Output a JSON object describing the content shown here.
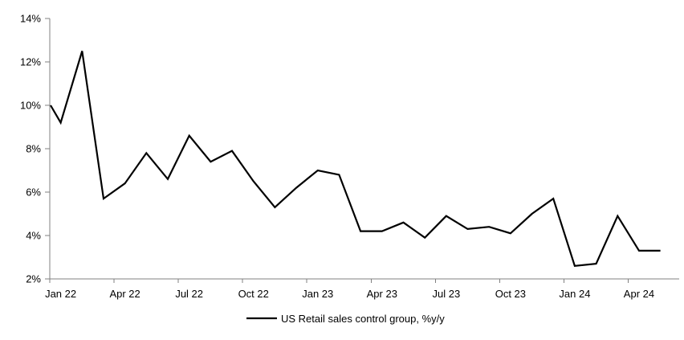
{
  "chart_data": {
    "type": "line",
    "title": "",
    "legend": "US Retail sales control group, %y/y",
    "x": [
      "Jan 22",
      "Feb 22",
      "Mar 22",
      "Apr 22",
      "May 22",
      "Jun 22",
      "Jul 22",
      "Aug 22",
      "Sep 22",
      "Oct 22",
      "Nov 22",
      "Dec 22",
      "Jan 23",
      "Feb 23",
      "Mar 23",
      "Apr 23",
      "May 23",
      "Jun 23",
      "Jul 23",
      "Aug 23",
      "Sep 23",
      "Oct 23",
      "Nov 23",
      "Dec 23",
      "Jan 24",
      "Feb 24",
      "Mar 24",
      "Apr 24",
      "May 24"
    ],
    "values": [
      9.2,
      12.5,
      5.7,
      6.4,
      7.8,
      6.6,
      8.6,
      7.4,
      7.9,
      6.5,
      5.3,
      6.2,
      7.0,
      6.8,
      4.2,
      4.2,
      4.6,
      3.9,
      4.9,
      4.3,
      4.4,
      4.1,
      5.0,
      5.7,
      2.6,
      2.7,
      4.9,
      3.3,
      3.3
    ],
    "lead_in": {
      "value": 10.0,
      "note": "line enters clipped at left axis edge"
    },
    "xlabel": "",
    "ylabel": "",
    "ylim": [
      2,
      14
    ],
    "ytick_step": 2,
    "ytick_labels": [
      "2%",
      "4%",
      "6%",
      "8%",
      "10%",
      "12%",
      "14%"
    ],
    "xtick_labels_shown": [
      "Jan 22",
      "Apr 22",
      "Jul 22",
      "Oct 22",
      "Jan 23",
      "Apr 23",
      "Jul 23",
      "Oct 23",
      "Jan 24",
      "Apr 24"
    ],
    "grid": false,
    "legend_position": "bottom-center",
    "line_color": "#000000",
    "axis_color": "#808080"
  }
}
